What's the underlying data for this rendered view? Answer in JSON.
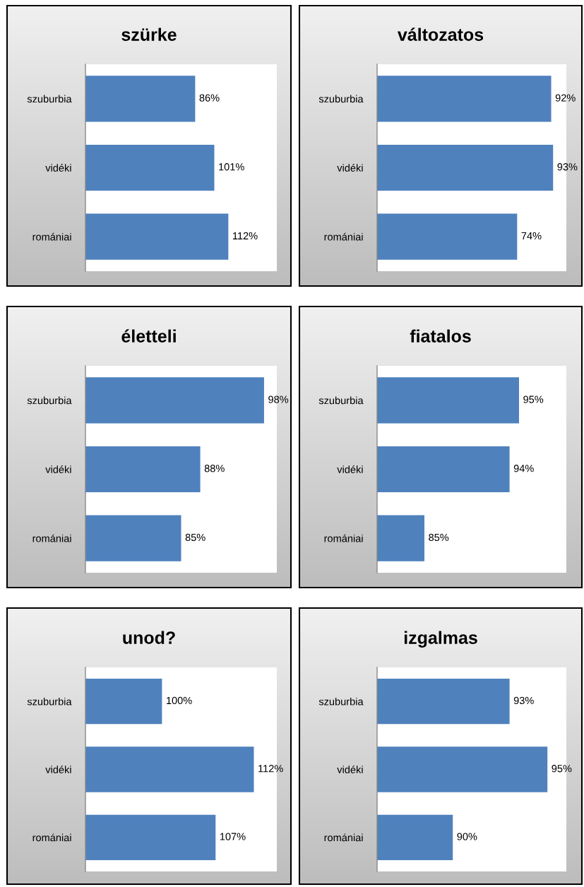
{
  "chart_data": [
    {
      "type": "bar",
      "orientation": "horizontal",
      "title": "szürke",
      "categories": [
        "szuburbia",
        "vidéki",
        "romániai"
      ],
      "values": [
        86,
        101,
        112
      ],
      "value_labels": [
        "86%",
        "101%",
        "112%"
      ],
      "color": "#4f81bd",
      "xlim": [
        0,
        150
      ],
      "tick_labels": "y"
    },
    {
      "type": "bar",
      "orientation": "horizontal",
      "title": "változatos",
      "categories": [
        "szuburbia",
        "vidéki",
        "romániai"
      ],
      "values": [
        92,
        93,
        74
      ],
      "value_labels": [
        "92%",
        "93%",
        "74%"
      ],
      "color": "#4f81bd",
      "xlim": [
        0,
        100
      ],
      "tick_labels": "y"
    },
    {
      "type": "bar",
      "orientation": "horizontal",
      "title": "életteli",
      "categories": [
        "szuburbia",
        "vidéki",
        "romániai"
      ],
      "values": [
        98,
        88,
        85
      ],
      "value_labels": [
        "98%",
        "88%",
        "85%"
      ],
      "color": "#4f81bd",
      "xlim": [
        70,
        100
      ],
      "tick_labels": "y"
    },
    {
      "type": "bar",
      "orientation": "horizontal",
      "title": "fiatalos",
      "categories": [
        "szuburbia",
        "vidéki",
        "romániai"
      ],
      "values": [
        95,
        94,
        85
      ],
      "value_labels": [
        "95%",
        "94%",
        "85%"
      ],
      "color": "#4f81bd",
      "xlim": [
        80,
        100
      ],
      "tick_labels": "y"
    },
    {
      "type": "bar",
      "orientation": "horizontal",
      "title": "unod?",
      "categories": [
        "szuburbia",
        "vidéki",
        "romániai"
      ],
      "values": [
        100,
        112,
        107
      ],
      "value_labels": [
        "100%",
        "112%",
        "107%"
      ],
      "color": "#4f81bd",
      "xlim": [
        90,
        115
      ],
      "tick_labels": "y"
    },
    {
      "type": "bar",
      "orientation": "horizontal",
      "title": "izgalmas",
      "categories": [
        "szuburbia",
        "vidéki",
        "romániai"
      ],
      "values": [
        93,
        95,
        90
      ],
      "value_labels": [
        "93%",
        "95%",
        "90%"
      ],
      "color": "#4f81bd",
      "xlim": [
        86,
        96
      ],
      "tick_labels": "y"
    }
  ]
}
